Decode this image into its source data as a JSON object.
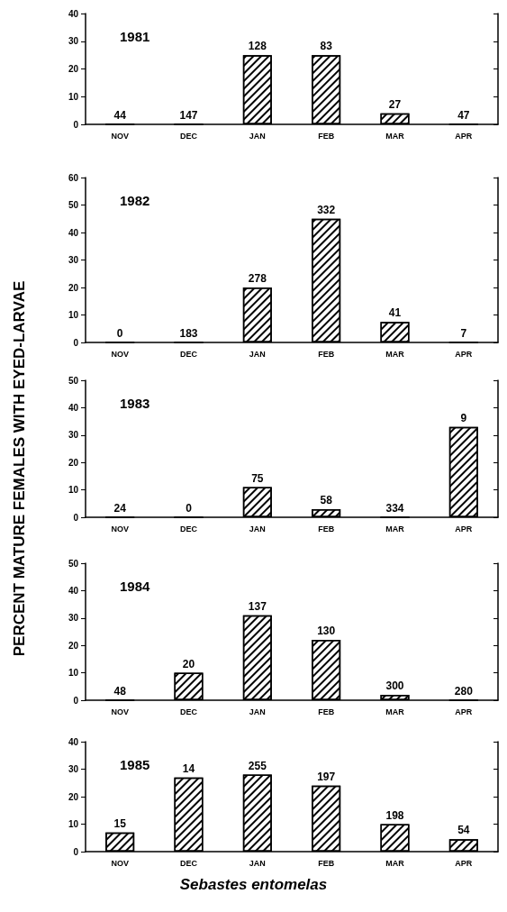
{
  "chart_data": [
    {
      "type": "bar",
      "title": "1981",
      "categories": [
        "NOV",
        "DEC",
        "JAN",
        "FEB",
        "MAR",
        "APR"
      ],
      "values": [
        0,
        0,
        25,
        25,
        4,
        0
      ],
      "color": "#000000",
      "ylim": [
        0,
        40
      ],
      "yticks": [
        0,
        10,
        20,
        30,
        40
      ],
      "grid": false,
      "annotations": [
        {
          "text": "44",
          "x": "NOV",
          "y": 0
        },
        {
          "text": "147",
          "x": "DEC",
          "y": 0
        },
        {
          "text": "128",
          "x": "JAN",
          "y": 25
        },
        {
          "text": "83",
          "x": "FEB",
          "y": 25
        },
        {
          "text": "27",
          "x": "MAR",
          "y": 4
        },
        {
          "text": "47",
          "x": "APR",
          "y": 0
        }
      ]
    },
    {
      "type": "bar",
      "title": "1982",
      "categories": [
        "NOV",
        "DEC",
        "JAN",
        "FEB",
        "MAR",
        "APR"
      ],
      "values": [
        0,
        0,
        20,
        45,
        7.5,
        0
      ],
      "color": "#000000",
      "ylim": [
        0,
        60
      ],
      "yticks": [
        0,
        10,
        20,
        30,
        40,
        50,
        60
      ],
      "grid": false,
      "annotations": [
        {
          "text": "0",
          "x": "NOV",
          "y": 0
        },
        {
          "text": "183",
          "x": "DEC",
          "y": 0
        },
        {
          "text": "278",
          "x": "JAN",
          "y": 20
        },
        {
          "text": "332",
          "x": "FEB",
          "y": 45
        },
        {
          "text": "41",
          "x": "MAR",
          "y": 7.5
        },
        {
          "text": "7",
          "x": "APR",
          "y": 0
        }
      ]
    },
    {
      "type": "bar",
      "title": "1983",
      "ylabel": "PERCENT MATURE FEMALES WITH EYED-LARVAE",
      "categories": [
        "NOV",
        "DEC",
        "JAN",
        "FEB",
        "MAR",
        "APR"
      ],
      "values": [
        0,
        0,
        11,
        3,
        0,
        33
      ],
      "color": "#000000",
      "ylim": [
        0,
        50
      ],
      "yticks": [
        0,
        10,
        20,
        30,
        40,
        50
      ],
      "grid": false,
      "annotations": [
        {
          "text": "24",
          "x": "NOV",
          "y": 0
        },
        {
          "text": "0",
          "x": "DEC",
          "y": 0
        },
        {
          "text": "75",
          "x": "JAN",
          "y": 11
        },
        {
          "text": "58",
          "x": "FEB",
          "y": 3
        },
        {
          "text": "334",
          "x": "MAR",
          "y": 0
        },
        {
          "text": "9",
          "x": "APR",
          "y": 33
        }
      ]
    },
    {
      "type": "bar",
      "title": "1984",
      "categories": [
        "NOV",
        "DEC",
        "JAN",
        "FEB",
        "MAR",
        "APR"
      ],
      "values": [
        0,
        10,
        31,
        22,
        2,
        0
      ],
      "color": "#000000",
      "ylim": [
        0,
        50
      ],
      "yticks": [
        0,
        10,
        20,
        30,
        40,
        50
      ],
      "grid": false,
      "annotations": [
        {
          "text": "48",
          "x": "NOV",
          "y": 0
        },
        {
          "text": "20",
          "x": "DEC",
          "y": 10
        },
        {
          "text": "137",
          "x": "JAN",
          "y": 31
        },
        {
          "text": "130",
          "x": "FEB",
          "y": 22
        },
        {
          "text": "300",
          "x": "MAR",
          "y": 2
        },
        {
          "text": "280",
          "x": "APR",
          "y": 0
        }
      ]
    },
    {
      "type": "bar",
      "title": "1985",
      "xlabel": "Sebastes entomelas",
      "categories": [
        "NOV",
        "DEC",
        "JAN",
        "FEB",
        "MAR",
        "APR"
      ],
      "values": [
        7,
        27,
        28,
        24,
        10,
        4.5
      ],
      "color": "#000000",
      "ylim": [
        0,
        40
      ],
      "yticks": [
        0,
        10,
        20,
        30,
        40
      ],
      "grid": false,
      "annotations": [
        {
          "text": "15",
          "x": "NOV",
          "y": 7
        },
        {
          "text": "14",
          "x": "DEC",
          "y": 27
        },
        {
          "text": "255",
          "x": "JAN",
          "y": 28
        },
        {
          "text": "197",
          "x": "FEB",
          "y": 24
        },
        {
          "text": "198",
          "x": "MAR",
          "y": 10
        },
        {
          "text": "54",
          "x": "APR",
          "y": 4.5
        }
      ]
    }
  ]
}
